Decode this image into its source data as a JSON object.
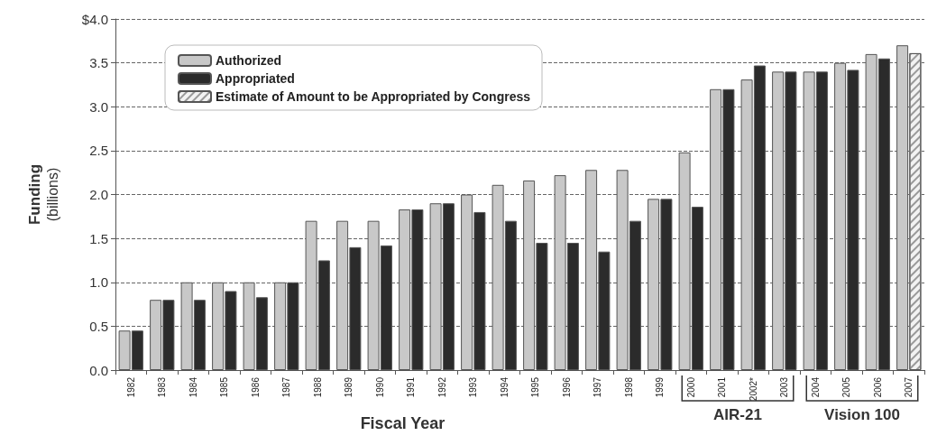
{
  "chart_data": {
    "type": "bar",
    "xlabel": "Fiscal Year",
    "ylabel": "Funding (billions)",
    "categories": [
      "1982",
      "1983",
      "1984",
      "1985",
      "1986",
      "1987",
      "1988",
      "1989",
      "1990",
      "1991",
      "1992",
      "1993",
      "1994",
      "1995",
      "1996",
      "1997",
      "1998",
      "1999",
      "2000",
      "2001",
      "2002*",
      "2003",
      "2004",
      "2005",
      "2006",
      "2007"
    ],
    "series": [
      {
        "name": "Authorized",
        "color": "#c8c8c8",
        "values": [
          0.45,
          0.8,
          1.0,
          1.0,
          1.0,
          1.0,
          1.7,
          1.7,
          1.7,
          1.83,
          1.9,
          2.0,
          2.11,
          2.16,
          2.22,
          2.28,
          2.28,
          1.95,
          2.48,
          3.2,
          3.31,
          3.4,
          3.4,
          3.5,
          3.6,
          3.7
        ]
      },
      {
        "name": "Appropriated",
        "color": "#2b2b2b",
        "values": [
          0.45,
          0.8,
          0.8,
          0.9,
          0.83,
          1.0,
          1.25,
          1.4,
          1.42,
          1.83,
          1.9,
          1.8,
          1.7,
          1.45,
          1.45,
          1.35,
          1.7,
          1.95,
          1.86,
          3.2,
          3.47,
          3.4,
          3.4,
          3.42,
          3.55,
          null
        ]
      },
      {
        "name": "Estimate of Amount to be Appropriated by Congress",
        "color": "#f2f2f2",
        "values": [
          null,
          null,
          null,
          null,
          null,
          null,
          null,
          null,
          null,
          null,
          null,
          null,
          null,
          null,
          null,
          null,
          null,
          null,
          null,
          null,
          null,
          null,
          null,
          null,
          null,
          3.61
        ]
      }
    ],
    "ylim": [
      0,
      4
    ],
    "yticks": [
      {
        "value": 0,
        "label": "0.0"
      },
      {
        "value": 0.5,
        "label": "0.5"
      },
      {
        "value": 1,
        "label": "1.0"
      },
      {
        "value": 1.5,
        "label": "1.5"
      },
      {
        "value": 2,
        "label": "2.0"
      },
      {
        "value": 2.5,
        "label": "2.5"
      },
      {
        "value": 3,
        "label": "3.0"
      },
      {
        "value": 3.5,
        "label": "3.5"
      },
      {
        "value": 4,
        "label": "$4.0"
      }
    ],
    "grid": "y",
    "legend": "top left",
    "annotations": [
      "AIR-21",
      "Vision 100"
    ]
  }
}
